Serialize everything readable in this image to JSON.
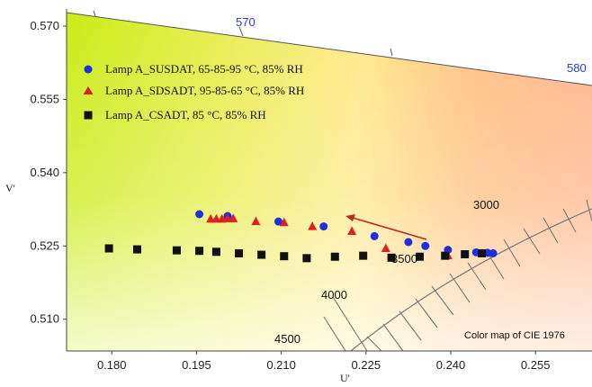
{
  "chart_data": {
    "type": "scatter",
    "xlabel": "U'",
    "ylabel": "V'",
    "xlim": [
      0.172,
      0.265
    ],
    "ylim": [
      0.5035,
      0.5735
    ],
    "x_ticks": [
      "0.180",
      "0.195",
      "0.210",
      "0.225",
      "0.240",
      "0.255"
    ],
    "y_ticks": [
      "0.570",
      "0.555",
      "0.540",
      "0.525",
      "0.510"
    ],
    "background_annotation": "Color map of CIE 1976",
    "wavelength_labels": [
      "570",
      "580"
    ],
    "cct_labels": [
      "3000",
      "3500",
      "4000",
      "4500"
    ],
    "legend_position": "top-left",
    "series": [
      {
        "name": "Lamp A_SUSDAT,  65-85-95 °C, 85% RH",
        "marker": "circle",
        "color": "#1f2fe0",
        "x": [
          0.1955,
          0.2005,
          0.2095,
          0.2175,
          0.2265,
          0.2325,
          0.2355,
          0.2395,
          0.2445,
          0.2465,
          0.2475
        ],
        "y": [
          0.5315,
          0.5311,
          0.53,
          0.529,
          0.527,
          0.5258,
          0.525,
          0.5242,
          0.5237,
          0.5236,
          0.5235
        ]
      },
      {
        "name": "Lamp A_SDSADT, 95-85-65 °C,  85% RH",
        "marker": "triangle",
        "color": "#e01f1f",
        "x": [
          0.1975,
          0.1985,
          0.1995,
          0.2005,
          0.2015,
          0.2055,
          0.2105,
          0.2155,
          0.2225,
          0.2285,
          0.2395
        ],
        "y": [
          0.5305,
          0.5305,
          0.5305,
          0.5306,
          0.5306,
          0.53,
          0.5298,
          0.529,
          0.528,
          0.5245,
          0.523
        ]
      },
      {
        "name": "Lamp A_CSADT, 85 °C, 85% RH",
        "marker": "square",
        "color": "#111111",
        "x": [
          0.1795,
          0.1845,
          0.1915,
          0.1955,
          0.1985,
          0.2025,
          0.2065,
          0.2105,
          0.2145,
          0.2195,
          0.2245,
          0.2295,
          0.2345,
          0.239,
          0.2425,
          0.2455
        ],
        "y": [
          0.5245,
          0.5243,
          0.5241,
          0.524,
          0.5238,
          0.5235,
          0.5232,
          0.5229,
          0.5225,
          0.5228,
          0.523,
          0.5226,
          0.5228,
          0.523,
          0.5233,
          0.5235
        ]
      }
    ]
  }
}
